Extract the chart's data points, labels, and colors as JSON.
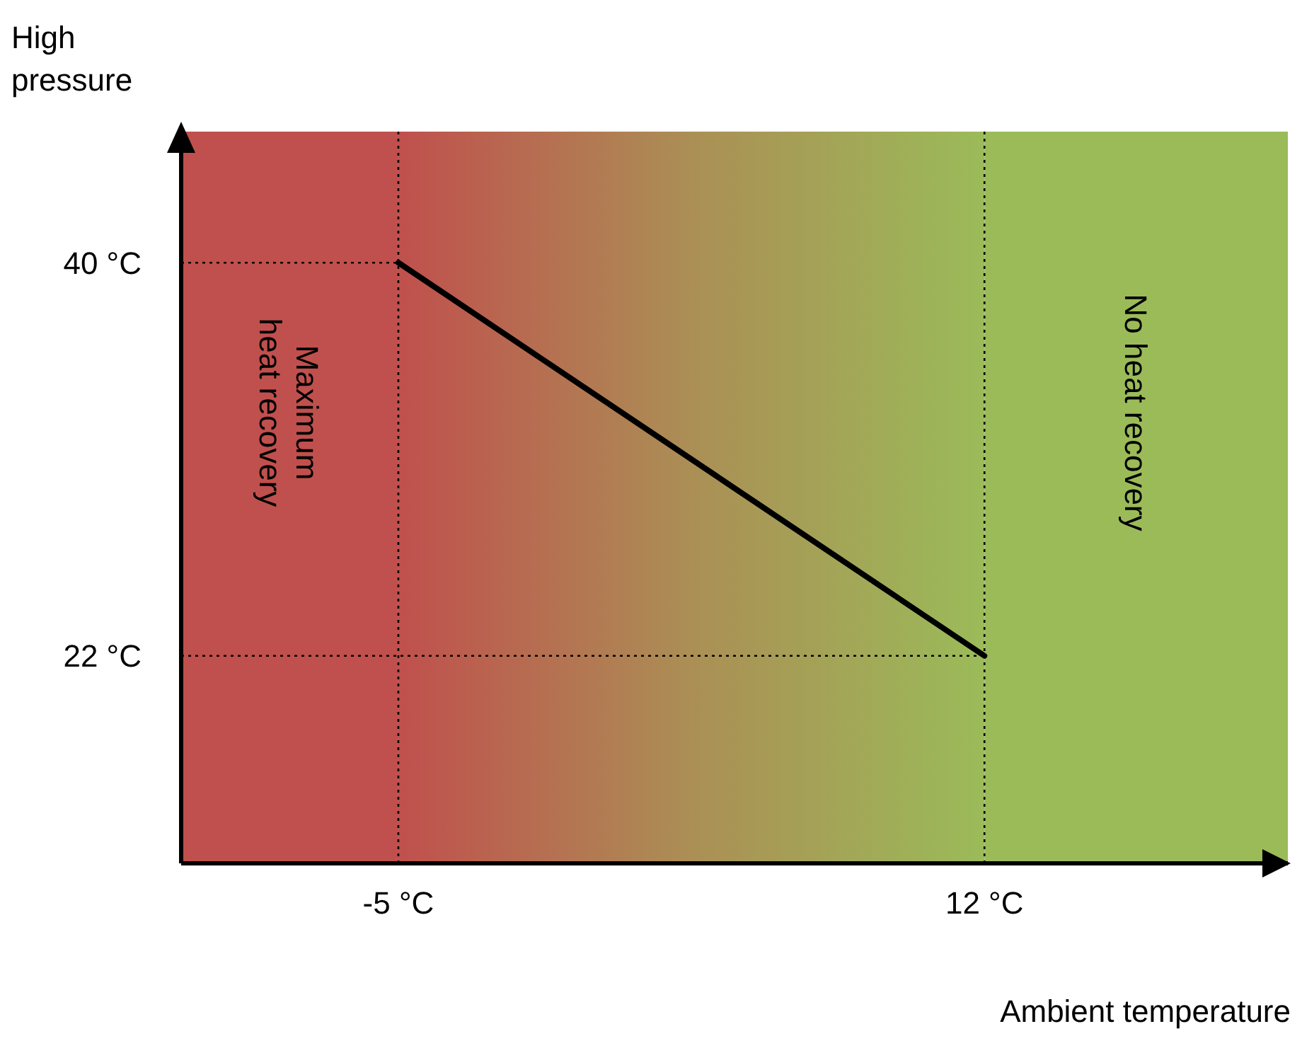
{
  "chart_data": {
    "type": "line",
    "xlabel": "Ambient temperature",
    "ylabel": "High pressure",
    "x": [
      -5,
      12
    ],
    "series": [
      {
        "color": "#000000",
        "values": [
          40,
          22
        ]
      }
    ],
    "xlim": [
      -11.3,
      20.8
    ],
    "ylim": [
      12.5,
      46
    ],
    "xticks": [
      {
        "value": -5,
        "label": "-5 °C"
      },
      {
        "value": 12,
        "label": "12 °C"
      }
    ],
    "yticks": [
      {
        "value": 22,
        "label": "22 °C"
      },
      {
        "value": 40,
        "label": "40 °C"
      }
    ],
    "bands": [
      {
        "axis": "x",
        "from": -11.3,
        "to": -5,
        "label": "Maximum heat recovery",
        "color": "#c0504d"
      },
      {
        "axis": "x",
        "from": -5,
        "to": 12,
        "color": "#ab8f55"
      },
      {
        "axis": "x",
        "from": 12,
        "to": 20.8,
        "label": "No heat recovery",
        "color": "#9bbb59"
      }
    ],
    "ref_lines": [
      {
        "axis": "x",
        "value": -5,
        "line_style": "dotted"
      },
      {
        "axis": "x",
        "value": 12,
        "line_style": "dotted"
      },
      {
        "axis": "y",
        "value": 40,
        "line_style": "dotted"
      },
      {
        "axis": "y",
        "value": 22,
        "line_style": "dotted"
      }
    ],
    "grid": false,
    "legend": false,
    "marker": "none",
    "line_style": "solid"
  }
}
